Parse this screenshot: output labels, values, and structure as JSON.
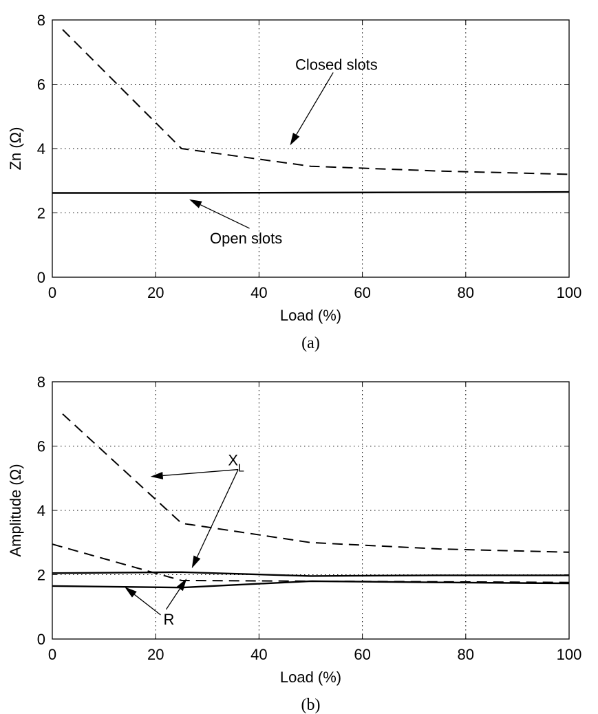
{
  "chart_data": [
    {
      "type": "line",
      "caption": "(a)",
      "xlabel": "Load (%)",
      "ylabel": "Zn (Ω)",
      "xlim": [
        0,
        100
      ],
      "ylim": [
        0,
        8
      ],
      "xticks": [
        "0",
        "20",
        "40",
        "60",
        "80",
        "100"
      ],
      "yticks": [
        "0",
        "2",
        "4",
        "6",
        "8"
      ],
      "grid": true,
      "series": [
        {
          "style": "dashed",
          "x": [
            2,
            25,
            50,
            75,
            100
          ],
          "y": [
            7.7,
            4.0,
            3.45,
            3.3,
            3.2
          ]
        },
        {
          "style": "solid",
          "x": [
            0,
            25,
            50,
            75,
            100
          ],
          "y": [
            2.62,
            2.62,
            2.63,
            2.64,
            2.65
          ]
        }
      ],
      "annotations": [
        {
          "text": "Closed slots",
          "x": 47,
          "y": 6.45,
          "arrow_to": [
            46,
            4.1
          ]
        },
        {
          "text": "Open slots",
          "x": 30.5,
          "y": 1.05,
          "arrow_to": [
            26.5,
            2.42
          ]
        }
      ]
    },
    {
      "type": "line",
      "caption": "(b)",
      "xlabel": "Load (%)",
      "ylabel": "Amplitude (Ω)",
      "xlim": [
        0,
        100
      ],
      "ylim": [
        0,
        8
      ],
      "xticks": [
        "0",
        "20",
        "40",
        "60",
        "80",
        "100"
      ],
      "yticks": [
        "0",
        "2",
        "4",
        "6",
        "8"
      ],
      "grid": true,
      "series": [
        {
          "style": "dashed",
          "x": [
            2,
            25,
            50,
            75,
            100
          ],
          "y": [
            7.0,
            3.6,
            3.0,
            2.8,
            2.7
          ]
        },
        {
          "style": "dashed",
          "x": [
            0,
            25,
            50,
            75,
            100
          ],
          "y": [
            2.95,
            1.82,
            1.8,
            1.78,
            1.76
          ]
        },
        {
          "style": "solid",
          "x": [
            0,
            25,
            50,
            75,
            100
          ],
          "y": [
            2.05,
            2.08,
            1.96,
            1.98,
            1.98
          ]
        },
        {
          "style": "solid",
          "x": [
            0,
            25,
            50,
            75,
            100
          ],
          "y": [
            1.65,
            1.6,
            1.8,
            1.76,
            1.73
          ]
        }
      ],
      "annotations": [
        {
          "text": "X",
          "subscript": "L",
          "x": 34,
          "y": 5.4,
          "arrows_to": [
            [
              19,
              5.05
            ],
            [
              27,
              2.2
            ]
          ]
        },
        {
          "text": "R",
          "x": 21.5,
          "y": 0.45,
          "arrows_to": [
            [
              14,
              1.62
            ],
            [
              26,
              1.88
            ]
          ]
        }
      ]
    }
  ]
}
